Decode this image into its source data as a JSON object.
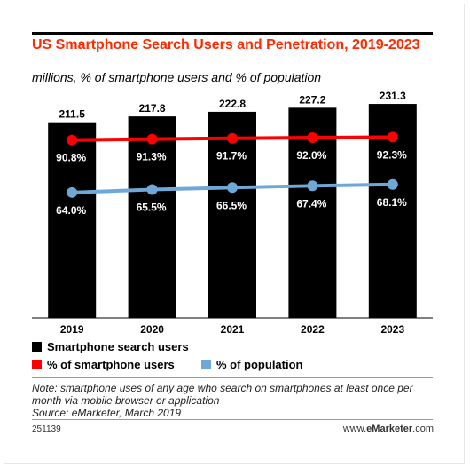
{
  "title": "US Smartphone Search Users and Penetration, 2019-2023",
  "subtitle": "millions, % of smartphone users and % of population",
  "chart_data": {
    "type": "bar",
    "categories": [
      "2019",
      "2020",
      "2021",
      "2022",
      "2023"
    ],
    "bar_series": {
      "name": "Smartphone search users",
      "values": [
        211.5,
        217.8,
        222.8,
        227.2,
        231.3
      ],
      "labels": [
        "211.5",
        "217.8",
        "222.8",
        "227.2",
        "231.3"
      ],
      "color": "#000000"
    },
    "line_series": [
      {
        "name": "% of smartphone users",
        "values": [
          90.8,
          91.3,
          91.7,
          92.0,
          92.3
        ],
        "labels": [
          "90.8%",
          "91.3%",
          "91.7%",
          "92.0%",
          "92.3%"
        ],
        "color": "#ff0000"
      },
      {
        "name": "% of population",
        "values": [
          64.0,
          65.5,
          66.5,
          67.4,
          68.1
        ],
        "labels": [
          "64.0%",
          "65.5%",
          "66.5%",
          "67.4%",
          "68.1%"
        ],
        "color": "#6fa8d6"
      }
    ]
  },
  "legend": {
    "bar": "Smartphone search users",
    "line1": "% of smartphone users",
    "line2": "% of population"
  },
  "note": "Note: smartphone uses of any age who search on smartphones at least once per month via mobile browser or application",
  "source": "Source: eMarketer, March 2019",
  "footer": {
    "id": "251139",
    "brand_prefix": "www.",
    "brand_bold": "eMarketer",
    "brand_suffix": ".com"
  }
}
